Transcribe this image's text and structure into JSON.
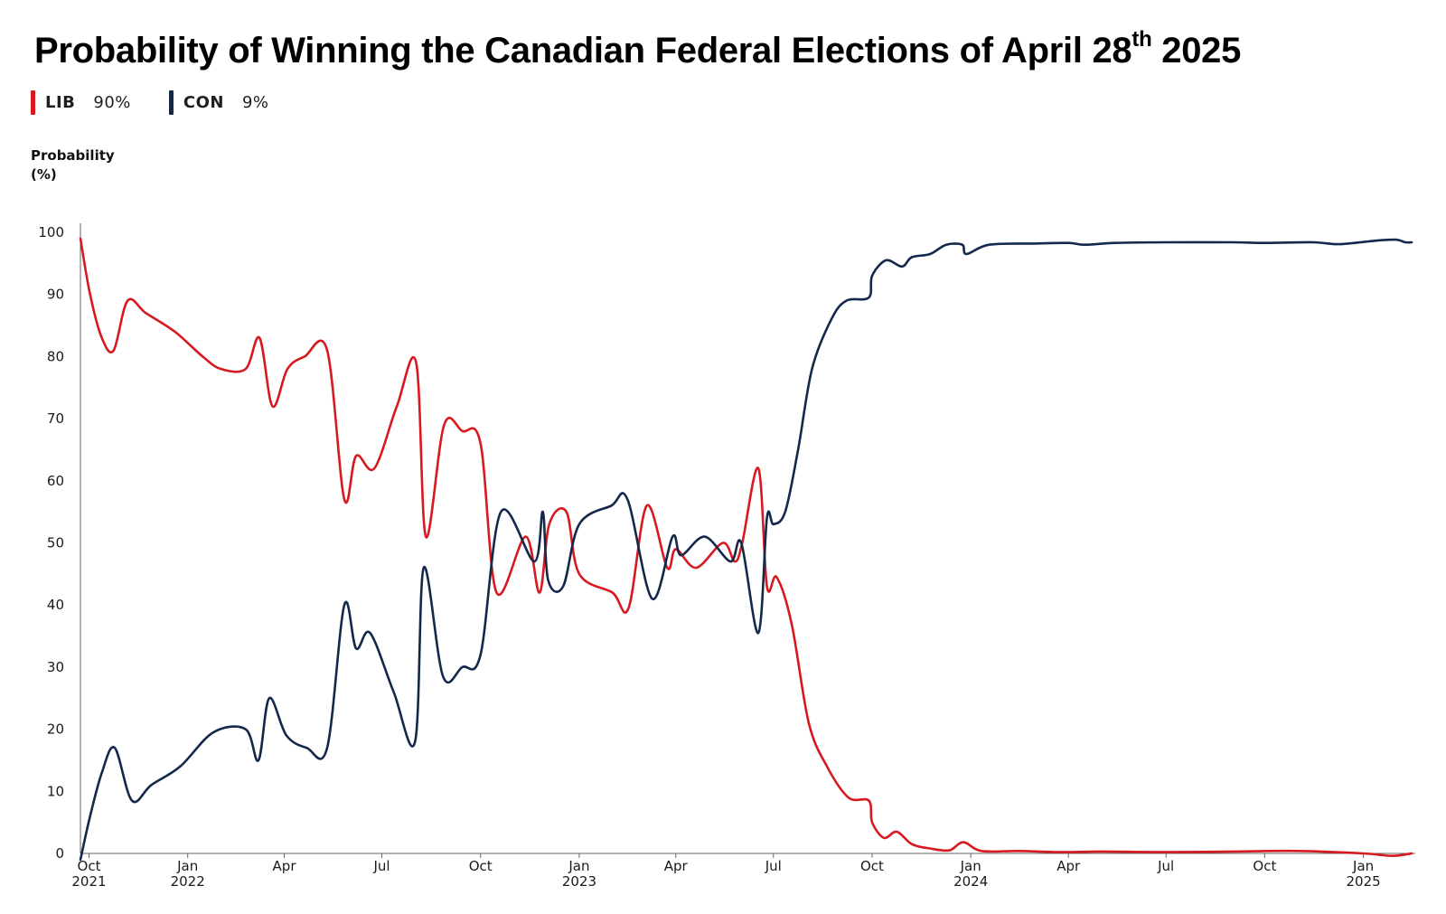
{
  "chart_data": {
    "type": "line",
    "title": "Probability of Winning the Canadian Federal Elections of April 28",
    "title_sup": "th",
    "title_end": " 2025",
    "ylabel_lines": [
      "Probability",
      "(%)"
    ],
    "ylim": [
      0,
      100
    ],
    "yticks": [
      0,
      10,
      20,
      30,
      40,
      50,
      60,
      70,
      80,
      90,
      100
    ],
    "xlim": [
      "2021-09-23",
      "2025-02-15"
    ],
    "xticks": [
      {
        "date": "2021-10-01",
        "label": [
          "Oct",
          "2021"
        ]
      },
      {
        "date": "2022-01-01",
        "label": [
          "Jan",
          "2022"
        ]
      },
      {
        "date": "2022-04-01",
        "label": [
          "Apr"
        ]
      },
      {
        "date": "2022-07-01",
        "label": [
          "Jul"
        ]
      },
      {
        "date": "2022-10-01",
        "label": [
          "Oct"
        ]
      },
      {
        "date": "2023-01-01",
        "label": [
          "Jan",
          "2023"
        ]
      },
      {
        "date": "2023-04-01",
        "label": [
          "Apr"
        ]
      },
      {
        "date": "2023-07-01",
        "label": [
          "Jul"
        ]
      },
      {
        "date": "2023-10-01",
        "label": [
          "Oct"
        ]
      },
      {
        "date": "2024-01-01",
        "label": [
          "Jan",
          "2024"
        ]
      },
      {
        "date": "2024-04-01",
        "label": [
          "Apr"
        ]
      },
      {
        "date": "2024-07-01",
        "label": [
          "Jul"
        ]
      },
      {
        "date": "2024-10-01",
        "label": [
          "Oct"
        ]
      },
      {
        "date": "2025-01-01",
        "label": [
          "Jan",
          "2025"
        ]
      }
    ],
    "grid": false,
    "legend_position": "top-left",
    "series": [
      {
        "name": "LIB",
        "legend_value": "90%",
        "color": "#d71920",
        "points": [
          [
            "2021-09-23",
            99
          ],
          [
            "2021-10-02",
            90
          ],
          [
            "2021-10-13",
            83
          ],
          [
            "2021-10-24",
            81
          ],
          [
            "2021-11-06",
            89
          ],
          [
            "2021-11-23",
            87
          ],
          [
            "2021-12-20",
            84
          ],
          [
            "2022-01-15",
            80
          ],
          [
            "2022-02-01",
            78
          ],
          [
            "2022-02-24",
            78
          ],
          [
            "2022-03-09",
            83
          ],
          [
            "2022-03-21",
            72
          ],
          [
            "2022-04-04",
            78
          ],
          [
            "2022-04-20",
            80
          ],
          [
            "2022-05-11",
            81
          ],
          [
            "2022-05-27",
            57
          ],
          [
            "2022-06-07",
            64
          ],
          [
            "2022-06-24",
            62
          ],
          [
            "2022-07-15",
            72
          ],
          [
            "2022-08-02",
            79
          ],
          [
            "2022-08-11",
            51
          ],
          [
            "2022-08-28",
            69
          ],
          [
            "2022-09-14",
            68
          ],
          [
            "2022-10-01",
            66
          ],
          [
            "2022-10-16",
            42
          ],
          [
            "2022-11-12",
            51
          ],
          [
            "2022-11-25",
            42
          ],
          [
            "2022-12-04",
            53
          ],
          [
            "2022-12-20",
            55
          ],
          [
            "2023-01-01",
            45
          ],
          [
            "2023-02-01",
            42
          ],
          [
            "2023-02-16",
            39.5
          ],
          [
            "2023-03-05",
            56
          ],
          [
            "2023-03-24",
            46
          ],
          [
            "2023-04-01",
            49
          ],
          [
            "2023-04-20",
            46
          ],
          [
            "2023-05-15",
            50
          ],
          [
            "2023-05-26",
            47
          ],
          [
            "2023-06-02",
            50
          ],
          [
            "2023-06-17",
            62
          ],
          [
            "2023-06-25",
            43
          ],
          [
            "2023-07-04",
            44.5
          ],
          [
            "2023-07-18",
            37
          ],
          [
            "2023-08-03",
            21
          ],
          [
            "2023-08-20",
            14
          ],
          [
            "2023-09-09",
            9
          ],
          [
            "2023-09-28",
            8.5
          ],
          [
            "2023-10-01",
            5
          ],
          [
            "2023-10-12",
            2.5
          ],
          [
            "2023-10-24",
            3.5
          ],
          [
            "2023-11-07",
            1.5
          ],
          [
            "2023-11-24",
            0.8
          ],
          [
            "2023-12-12",
            0.5
          ],
          [
            "2023-12-25",
            1.8
          ],
          [
            "2024-01-11",
            0.4
          ],
          [
            "2024-02-15",
            0.4
          ],
          [
            "2024-03-25",
            0.2
          ],
          [
            "2024-05-01",
            0.3
          ],
          [
            "2024-07-01",
            0.2
          ],
          [
            "2024-09-01",
            0.3
          ],
          [
            "2024-11-01",
            0.4
          ],
          [
            "2025-01-01",
            0
          ],
          [
            "2025-01-28",
            -0.4
          ],
          [
            "2025-02-15",
            0
          ]
        ]
      },
      {
        "name": "CON",
        "legend_value": "9%",
        "color": "#14284b",
        "points": [
          [
            "2021-09-23",
            -1
          ],
          [
            "2021-10-02",
            6
          ],
          [
            "2021-10-13",
            13
          ],
          [
            "2021-10-25",
            17
          ],
          [
            "2021-11-10",
            8.5
          ],
          [
            "2021-11-28",
            11
          ],
          [
            "2021-12-25",
            14
          ],
          [
            "2022-01-25",
            19.5
          ],
          [
            "2022-02-24",
            20
          ],
          [
            "2022-03-08",
            15
          ],
          [
            "2022-03-18",
            25
          ],
          [
            "2022-04-03",
            19
          ],
          [
            "2022-04-22",
            17
          ],
          [
            "2022-05-11",
            17
          ],
          [
            "2022-05-27",
            40
          ],
          [
            "2022-06-07",
            33
          ],
          [
            "2022-06-20",
            35.5
          ],
          [
            "2022-07-12",
            26
          ],
          [
            "2022-08-01",
            18
          ],
          [
            "2022-08-09",
            46
          ],
          [
            "2022-08-27",
            28.5
          ],
          [
            "2022-09-14",
            30
          ],
          [
            "2022-10-01",
            32
          ],
          [
            "2022-10-20",
            55
          ],
          [
            "2022-11-20",
            47
          ],
          [
            "2022-11-28",
            55
          ],
          [
            "2022-12-03",
            44
          ],
          [
            "2022-12-17",
            43
          ],
          [
            "2023-01-01",
            53
          ],
          [
            "2023-01-31",
            56
          ],
          [
            "2023-02-15",
            57
          ],
          [
            "2023-03-10",
            41
          ],
          [
            "2023-03-29",
            51
          ],
          [
            "2023-04-06",
            48
          ],
          [
            "2023-04-28",
            51
          ],
          [
            "2023-05-22",
            47
          ],
          [
            "2023-06-01",
            50
          ],
          [
            "2023-06-17",
            35.5
          ],
          [
            "2023-06-25",
            54
          ],
          [
            "2023-07-01",
            53
          ],
          [
            "2023-07-12",
            55
          ],
          [
            "2023-07-24",
            65
          ],
          [
            "2023-08-06",
            78
          ],
          [
            "2023-08-24",
            86
          ],
          [
            "2023-09-07",
            89
          ],
          [
            "2023-09-28",
            89.5
          ],
          [
            "2023-10-01",
            93
          ],
          [
            "2023-10-14",
            95.5
          ],
          [
            "2023-10-29",
            94.5
          ],
          [
            "2023-11-07",
            96
          ],
          [
            "2023-11-24",
            96.5
          ],
          [
            "2023-12-09",
            98
          ],
          [
            "2023-12-24",
            98
          ],
          [
            "2023-12-28",
            96.5
          ],
          [
            "2024-01-18",
            98
          ],
          [
            "2024-03-01",
            98.2
          ],
          [
            "2024-04-01",
            98.3
          ],
          [
            "2024-04-16",
            98
          ],
          [
            "2024-05-15",
            98.3
          ],
          [
            "2024-07-01",
            98.4
          ],
          [
            "2024-09-01",
            98.4
          ],
          [
            "2024-10-01",
            98.3
          ],
          [
            "2024-11-15",
            98.4
          ],
          [
            "2024-12-10",
            98.1
          ],
          [
            "2025-01-15",
            98.7
          ],
          [
            "2025-02-01",
            98.8
          ],
          [
            "2025-02-09",
            98.4
          ],
          [
            "2025-02-15",
            98.4
          ]
        ]
      }
    ]
  }
}
